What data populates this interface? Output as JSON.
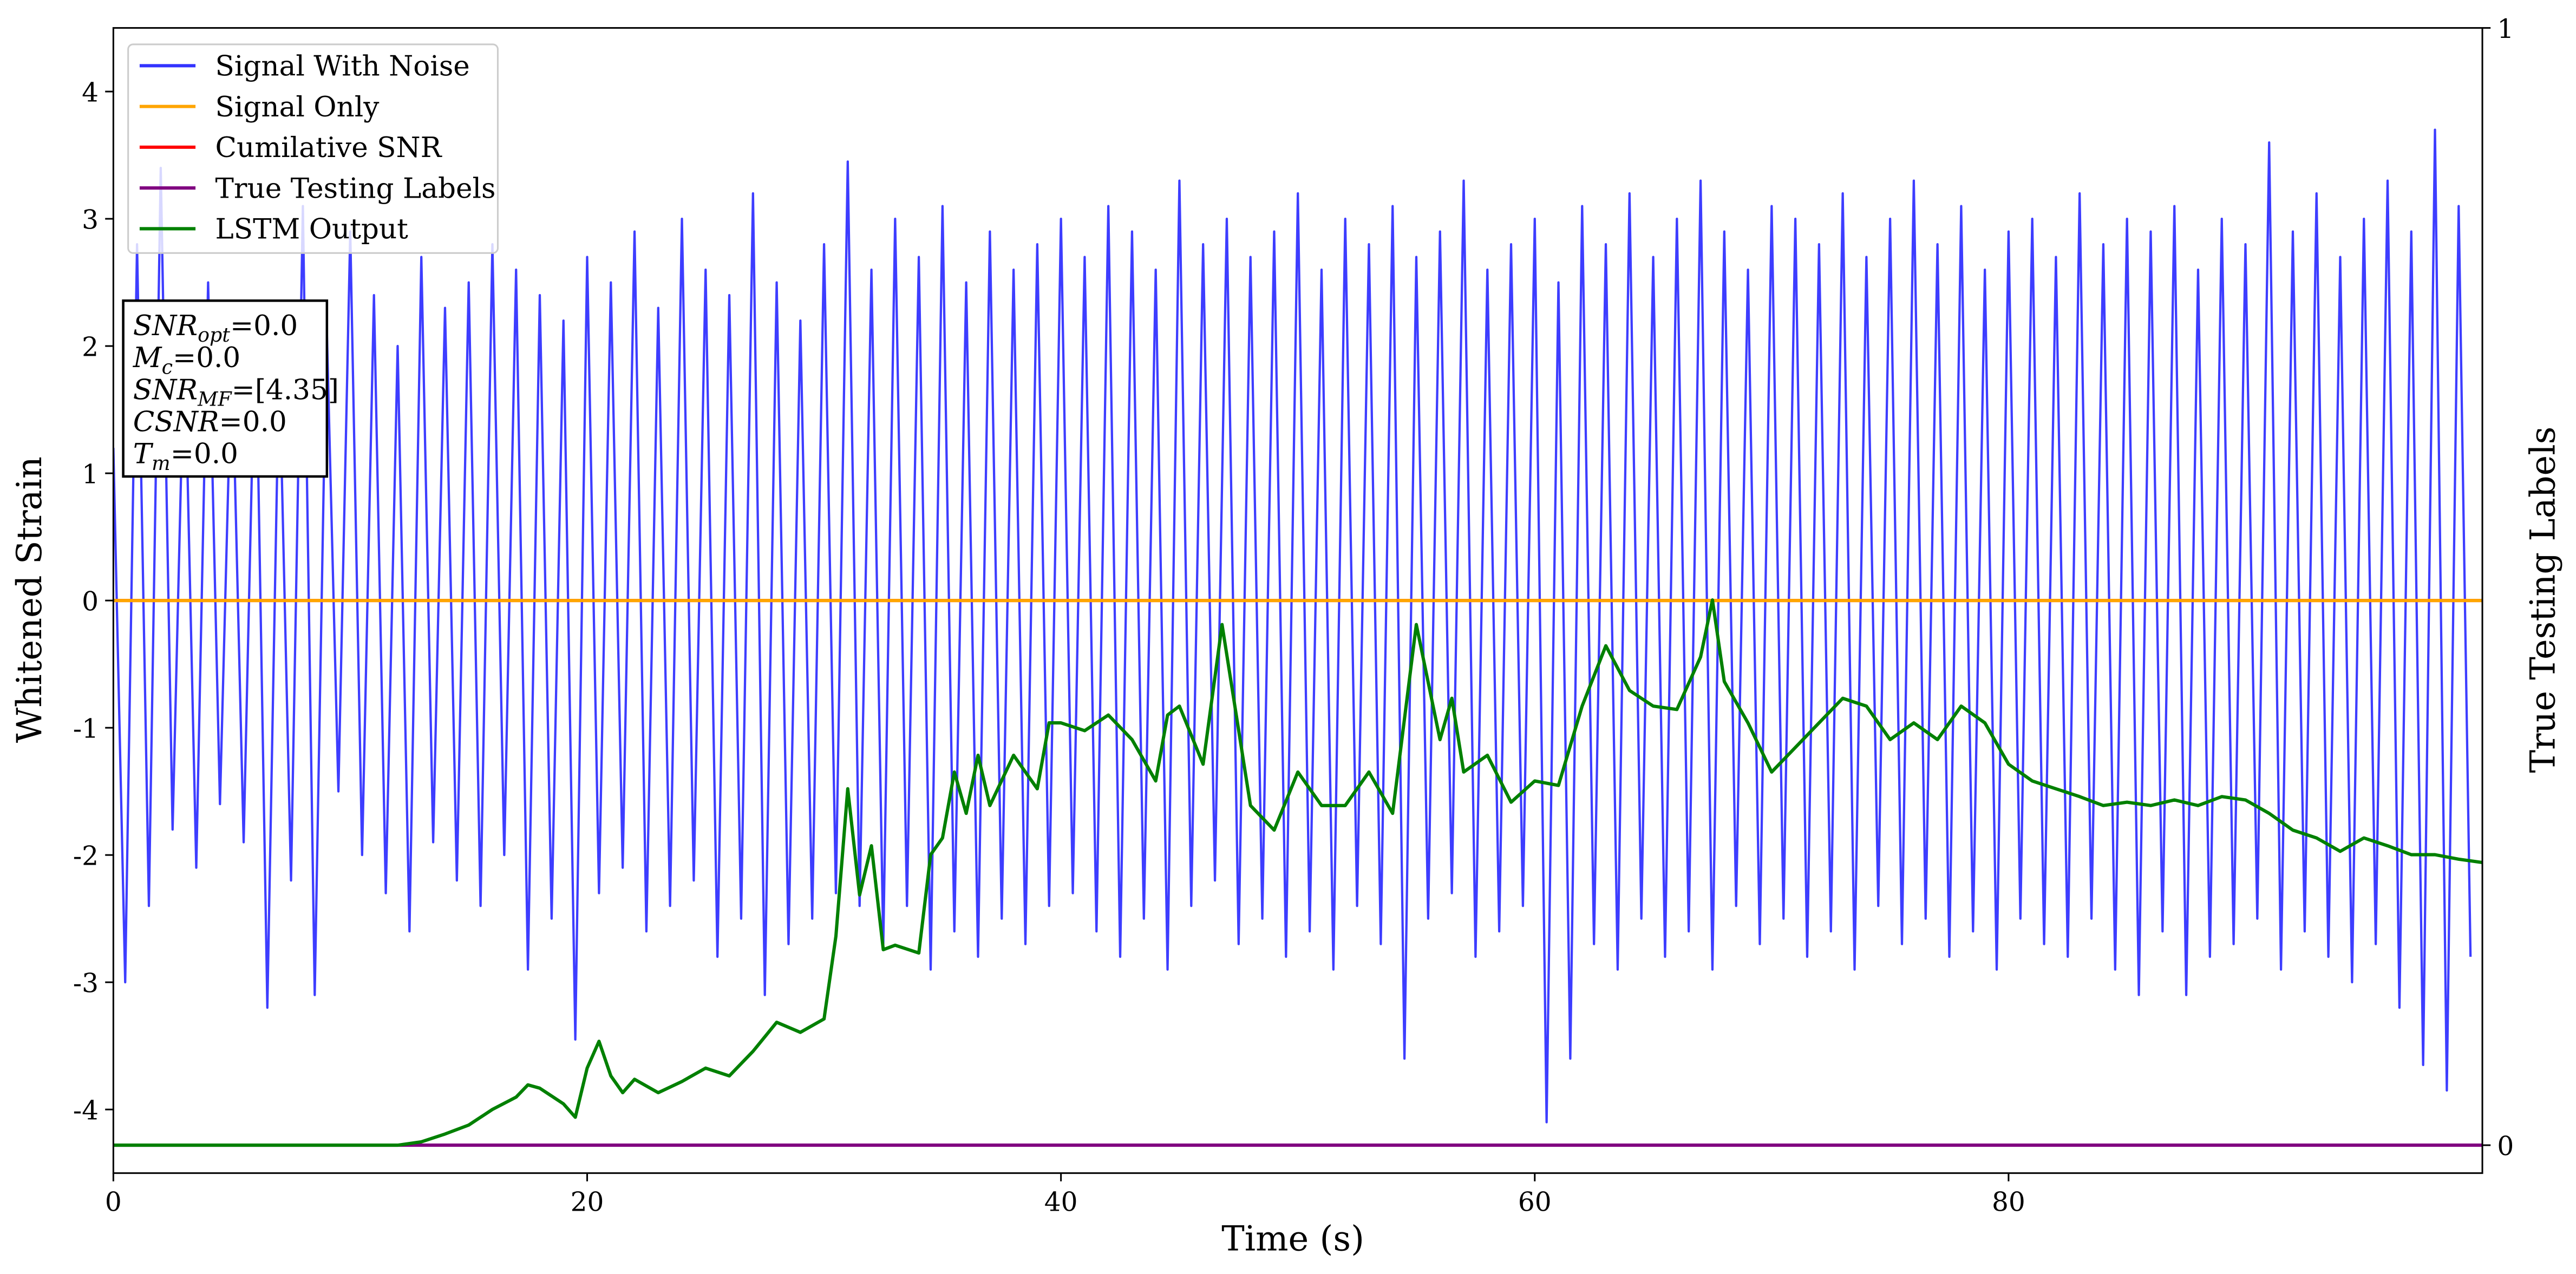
{
  "chart_data": {
    "type": "line",
    "xlabel": "Time (s)",
    "ylabel": "Whitened Strain",
    "y2label": "True Testing Labels",
    "xlim": [
      0,
      100
    ],
    "xticks": [
      0,
      20,
      40,
      60,
      80
    ],
    "ylim": [
      -4.5,
      4.5
    ],
    "yticks": [
      -4,
      -3,
      -2,
      -1,
      0,
      1,
      2,
      3,
      4
    ],
    "y2lim": [
      -0.025,
      1
    ],
    "y2ticks": [
      0,
      1
    ],
    "legend": "upper left",
    "annotation": [
      {
        "symbol": "SNR",
        "subscript": "opt",
        "text": "=0.0"
      },
      {
        "symbol": "M",
        "subscript": "c",
        "text": "=0.0"
      },
      {
        "symbol": "SNR",
        "subscript": "MF",
        "text": "=[4.35]"
      },
      {
        "symbol": "CSNR",
        "text": "=0.0"
      },
      {
        "symbol": "T",
        "subscript": "m",
        "text": "=0.0"
      }
    ],
    "series": [
      {
        "name": "Signal With Noise",
        "color": "#3333ff",
        "x": [
          0,
          0.5,
          1,
          1.5,
          2,
          2.5,
          3,
          3.5,
          4,
          4.5,
          5,
          5.5,
          6,
          6.5,
          7,
          7.5,
          8,
          8.5,
          9,
          9.5,
          10,
          10.5,
          11,
          11.5,
          12,
          12.5,
          13,
          13.5,
          14,
          14.5,
          15,
          15.5,
          16,
          16.5,
          17,
          17.5,
          18,
          18.5,
          19,
          19.5,
          20,
          20.5,
          21,
          21.5,
          22,
          22.5,
          23,
          23.5,
          24,
          24.5,
          25,
          25.5,
          26,
          26.5,
          27,
          27.5,
          28,
          28.5,
          29,
          29.5,
          30,
          30.5,
          31,
          31.5,
          32,
          32.5,
          33,
          33.5,
          34,
          34.5,
          35,
          35.5,
          36,
          36.5,
          37,
          37.5,
          38,
          38.5,
          39,
          39.5,
          40,
          40.5,
          41,
          41.5,
          42,
          42.5,
          43,
          43.5,
          44,
          44.5,
          45,
          45.5,
          46,
          46.5,
          47,
          47.5,
          48,
          48.5,
          49,
          49.5,
          50,
          50.5,
          51,
          51.5,
          52,
          52.5,
          53,
          53.5,
          54,
          54.5,
          55,
          55.5,
          56,
          56.5,
          57,
          57.5,
          58,
          58.5,
          59,
          59.5,
          60,
          60.5,
          61,
          61.5,
          62,
          62.5,
          63,
          63.5,
          64,
          64.5,
          65,
          65.5,
          66,
          66.5,
          67,
          67.5,
          68,
          68.5,
          69,
          69.5,
          70,
          70.5,
          71,
          71.5,
          72,
          72.5,
          73,
          73.5,
          74,
          74.5,
          75,
          75.5,
          76,
          76.5,
          77,
          77.5,
          78,
          78.5,
          79,
          79.5,
          80,
          80.5,
          81,
          81.5,
          82,
          82.5,
          83,
          83.5,
          84,
          84.5,
          85,
          85.5,
          86,
          86.5,
          87,
          87.5,
          88,
          88.5,
          89,
          89.5,
          90,
          90.5,
          91,
          91.5,
          92,
          92.5,
          93,
          93.5,
          94,
          94.5,
          95,
          95.5,
          96,
          96.5,
          97,
          97.5,
          98,
          98.5,
          99,
          99.5
        ],
        "values": [
          1.2,
          -3.0,
          2.8,
          -2.4,
          3.4,
          -1.8,
          2.1,
          -2.1,
          2.5,
          -1.6,
          2.0,
          -1.9,
          2.3,
          -3.2,
          1.9,
          -2.2,
          3.1,
          -3.1,
          2.2,
          -1.5,
          2.9,
          -2.0,
          2.4,
          -2.3,
          2.0,
          -2.6,
          2.7,
          -1.9,
          2.3,
          -2.2,
          2.5,
          -2.4,
          2.8,
          -2.0,
          2.6,
          -2.9,
          2.4,
          -2.5,
          2.2,
          -3.45,
          2.7,
          -2.3,
          2.5,
          -2.1,
          2.9,
          -2.6,
          2.3,
          -2.4,
          3.0,
          -2.2,
          2.6,
          -2.8,
          2.4,
          -2.5,
          3.2,
          -3.1,
          2.5,
          -2.7,
          2.2,
          -2.5,
          2.8,
          -2.3,
          3.45,
          -2.4,
          2.6,
          -2.7,
          3.0,
          -2.4,
          2.7,
          -2.9,
          3.1,
          -2.6,
          2.5,
          -2.8,
          2.9,
          -2.5,
          2.6,
          -2.7,
          2.8,
          -2.4,
          3.0,
          -2.3,
          2.7,
          -2.6,
          3.1,
          -2.8,
          2.9,
          -2.5,
          2.6,
          -2.9,
          3.3,
          -2.4,
          2.8,
          -2.2,
          3.0,
          -2.7,
          2.7,
          -2.5,
          2.9,
          -2.8,
          3.2,
          -2.6,
          2.6,
          -2.9,
          3.0,
          -2.4,
          2.8,
          -2.7,
          3.1,
          -3.6,
          2.7,
          -2.5,
          2.9,
          -2.3,
          3.3,
          -2.8,
          2.6,
          -2.6,
          2.8,
          -2.4,
          3.0,
          -4.1,
          2.5,
          -3.6,
          3.1,
          -2.7,
          2.8,
          -2.9,
          3.2,
          -2.5,
          2.7,
          -2.8,
          3.0,
          -2.6,
          3.3,
          -2.9,
          2.9,
          -2.4,
          2.6,
          -2.7,
          3.1,
          -2.5,
          3.0,
          -2.8,
          2.8,
          -2.6,
          3.2,
          -2.9,
          2.7,
          -2.4,
          3.0,
          -2.7,
          3.3,
          -2.5,
          2.8,
          -2.8,
          3.1,
          -2.6,
          2.6,
          -2.9,
          2.9,
          -2.5,
          3.0,
          -2.7,
          2.7,
          -2.8,
          3.2,
          -2.5,
          2.8,
          -2.9,
          3.0,
          -3.1,
          2.9,
          -2.6,
          3.1,
          -3.1,
          2.6,
          -2.8,
          3.0,
          -2.7,
          2.8,
          -2.5,
          3.6,
          -2.9,
          2.9,
          -2.6,
          3.2,
          -2.8,
          2.7,
          -3.0,
          3.0,
          -2.7,
          3.3,
          -3.2,
          2.9,
          -3.65,
          3.7,
          -3.85,
          3.1,
          -2.8
        ]
      },
      {
        "name": "Signal Only",
        "color": "orange",
        "x": [
          0,
          100
        ],
        "values": [
          0,
          0
        ]
      },
      {
        "name": "Cumilative SNR",
        "color": "red",
        "x": [
          0,
          100
        ],
        "values": [
          0,
          0
        ]
      },
      {
        "name": "True Testing Labels",
        "color": "purple",
        "axis": "y2",
        "x": [
          0,
          100
        ],
        "values": [
          0,
          0
        ]
      },
      {
        "name": "LSTM Output",
        "color": "green",
        "axis": "y2",
        "x": [
          0,
          5,
          10,
          12,
          13,
          14,
          15,
          16,
          17,
          17.5,
          18,
          19,
          19.5,
          20,
          20.5,
          21,
          21.5,
          22,
          23,
          24,
          25,
          26,
          27,
          28,
          29,
          30,
          30.5,
          31,
          31.5,
          32,
          32.5,
          33,
          34,
          34.5,
          35,
          35.5,
          36,
          36.5,
          37,
          38,
          39,
          39.5,
          40,
          41,
          42,
          43,
          44,
          44.5,
          45,
          46,
          46.8,
          48,
          49,
          50,
          51,
          52,
          53,
          54,
          55,
          56,
          56.5,
          57,
          58,
          59,
          60,
          61,
          62,
          63,
          64,
          65,
          66,
          67,
          67.5,
          68,
          69,
          70,
          71,
          72,
          73,
          74,
          75,
          76,
          77,
          78,
          79,
          80,
          81,
          82,
          83,
          84,
          85,
          86,
          87,
          88,
          89,
          90,
          91,
          92,
          93,
          94,
          95,
          96,
          97,
          98,
          99,
          100
        ],
        "values": [
          0,
          0,
          0,
          0,
          0.003,
          0.01,
          0.018,
          0.032,
          0.043,
          0.054,
          0.051,
          0.037,
          0.025,
          0.069,
          0.093,
          0.062,
          0.047,
          0.059,
          0.047,
          0.057,
          0.069,
          0.062,
          0.084,
          0.11,
          0.101,
          0.113,
          0.187,
          0.319,
          0.224,
          0.268,
          0.175,
          0.179,
          0.172,
          0.26,
          0.275,
          0.334,
          0.297,
          0.349,
          0.304,
          0.349,
          0.319,
          0.378,
          0.378,
          0.371,
          0.385,
          0.363,
          0.326,
          0.385,
          0.393,
          0.341,
          0.466,
          0.304,
          0.282,
          0.334,
          0.304,
          0.304,
          0.334,
          0.297,
          0.466,
          0.363,
          0.4,
          0.334,
          0.349,
          0.307,
          0.326,
          0.322,
          0.393,
          0.447,
          0.407,
          0.393,
          0.39,
          0.437,
          0.488,
          0.415,
          0.378,
          0.334,
          0.356,
          0.378,
          0.4,
          0.393,
          0.363,
          0.378,
          0.363,
          0.393,
          0.378,
          0.341,
          0.326,
          0.319,
          0.312,
          0.304,
          0.307,
          0.304,
          0.309,
          0.304,
          0.312,
          0.309,
          0.297,
          0.282,
          0.275,
          0.263,
          0.275,
          0.268,
          0.26,
          0.26,
          0.256,
          0.253
        ]
      }
    ]
  }
}
